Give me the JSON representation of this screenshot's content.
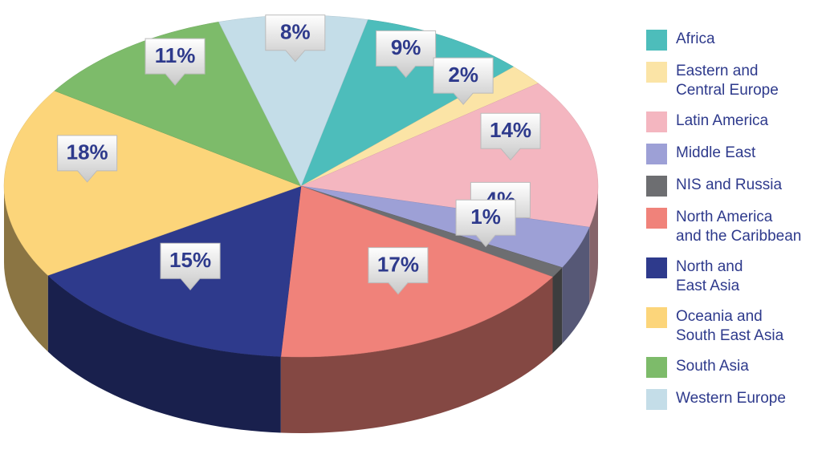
{
  "chart_data": {
    "type": "pie",
    "categories": [
      "Africa",
      "Eastern and\nCentral Europe",
      "Latin America",
      "Middle East",
      "NIS and Russia",
      "North America\nand the Caribbean",
      "North and\nEast Asia",
      "Oceania and\nSouth East Asia",
      "South Asia",
      "Western Europe"
    ],
    "values": [
      9,
      2,
      14,
      4,
      1,
      17,
      15,
      18,
      11,
      8
    ],
    "value_labels": [
      "9%",
      "2%",
      "14%",
      "4%",
      "1%",
      "17%",
      "15%",
      "18%",
      "11%",
      "8%"
    ],
    "colors": [
      "#4dbdbb",
      "#fbe4a6",
      "#f4b6c0",
      "#9da0d6",
      "#6d6e71",
      "#f0827a",
      "#2e3a8c",
      "#fcd57a",
      "#7dbb6a",
      "#c4dde8"
    ],
    "legend": "right"
  }
}
